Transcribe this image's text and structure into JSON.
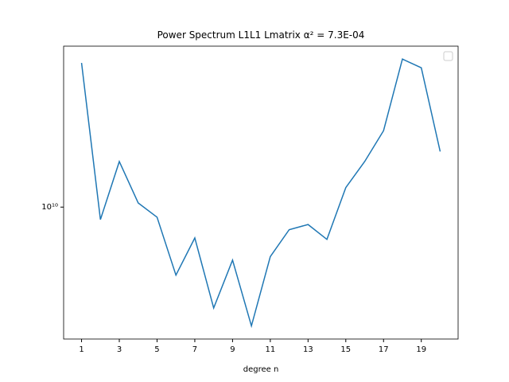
{
  "chart_data": {
    "type": "line",
    "title": "Power Spectrum L1L1 Lmatrix α² = 7.3E-04",
    "x_label": "degree n",
    "x": [
      1,
      2,
      3,
      4,
      5,
      6,
      7,
      8,
      9,
      10,
      11,
      12,
      13,
      14,
      15,
      16,
      17,
      18,
      19,
      20
    ],
    "series": [
      {
        "color": "#1f77b4",
        "values": [
          38400000000.0,
          8900000000.0,
          15300000000.0,
          10400000000.0,
          9100000000.0,
          5300000000.0,
          7500000000.0,
          3900000000.0,
          6100000000.0,
          3300000000.0,
          6300000000.0,
          8100000000.0,
          8500000000.0,
          7400000000.0,
          12000000000.0,
          15300000000.0,
          20400000000.0,
          39800000000.0,
          36700000000.0,
          16800000000.0
        ]
      }
    ],
    "xlim": [
      0.05,
      20.95
    ],
    "xticks": [
      1,
      3,
      5,
      7,
      9,
      11,
      13,
      15,
      17,
      19
    ],
    "ylim": [
      2920000000.0,
      44900000000.0
    ],
    "yticks": [
      {
        "value": 10000000000.0,
        "label": "10¹⁰"
      }
    ],
    "yscale": "log"
  }
}
